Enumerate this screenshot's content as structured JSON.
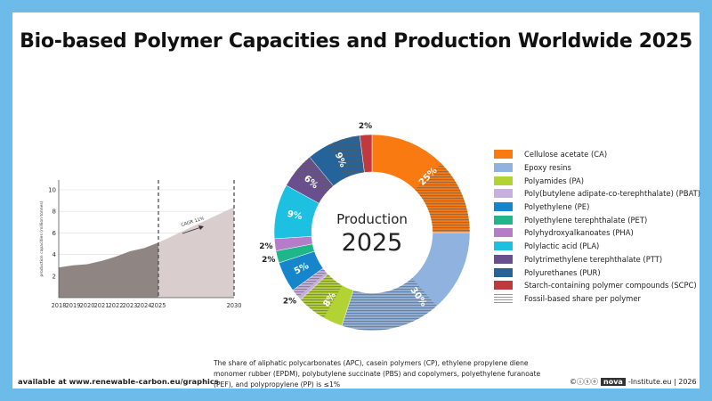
{
  "title": "Bio-based Polymer Capacities and Production Worldwide 2025",
  "chart_data": [
    {
      "type": "area",
      "ylabel": "production capacities (million tonnes)",
      "x": [
        2018,
        2019,
        2020,
        2021,
        2022,
        2023,
        2024,
        2025,
        2030
      ],
      "x_tick_labels": [
        "2018",
        "2019",
        "2020",
        "2021",
        "2022",
        "2023",
        "2024",
        "2025",
        "2030"
      ],
      "values": [
        2.8,
        3.0,
        3.1,
        3.4,
        3.8,
        4.3,
        4.6,
        5.1,
        8.4
      ],
      "forecast_from": 2025,
      "ylim": [
        0,
        11
      ],
      "y_ticks": [
        "2",
        "4",
        "6",
        "8",
        "10"
      ],
      "grid": true,
      "annotation": "CAGR 11%",
      "colors": {
        "actual": "#8f8684",
        "forecast": "#d9cdcd"
      }
    },
    {
      "type": "pie",
      "center_label": [
        "Production",
        "2025"
      ],
      "legend_position": "right",
      "categories": [
        "Cellulose acetate (CA)",
        "Epoxy resins",
        "Polyamides (PA)",
        "Poly(butylene adipate-co-terephthalate) (PBAT)",
        "Polyethylene (PE)",
        "Polyethylene terephthalate (PET)",
        "Polyhydroxyalkanoates (PHA)",
        "Polylactic acid (PLA)",
        "Polytrimethylene terephthalate (PTT)",
        "Polyurethanes (PUR)",
        "Starch-containing polymer compounds (SCPC)"
      ],
      "values": [
        25,
        30,
        8,
        2,
        5,
        2,
        2,
        9,
        6,
        9,
        2
      ],
      "labels": [
        "25%",
        "30%",
        "8%",
        "2%",
        "5%",
        "2%",
        "2%",
        "9%",
        "6%",
        "9%",
        "2%"
      ],
      "fossil_share_fraction": [
        0.5,
        0.55,
        0.6,
        0.7,
        0,
        0,
        0,
        0,
        0.6,
        0.6,
        0
      ],
      "colors": [
        "#f97a10",
        "#8fb2de",
        "#b3d334",
        "#c8b0de",
        "#1586cc",
        "#1fb78a",
        "#b57cc7",
        "#1dc0e0",
        "#6a4f8e",
        "#25649b",
        "#c0393f"
      ],
      "hatch_legend": "Fossil-based share per polymer"
    }
  ],
  "footer": {
    "source": "available at www.renewable-carbon.eu/graphics",
    "note": "The share of aliphatic polycarbonates (APC), casein polymers (CP), ethylene propylene diene monomer rubber (EPDM), polybutylene succinate (PBS)  and copolymers, polyethylene furanoate (PEF), and polypropylene (PP) is ≤1%",
    "license": "©ⓘⓢⓞ",
    "brand": "nova",
    "brand_suffix": "-Institute.eu | 2026"
  }
}
